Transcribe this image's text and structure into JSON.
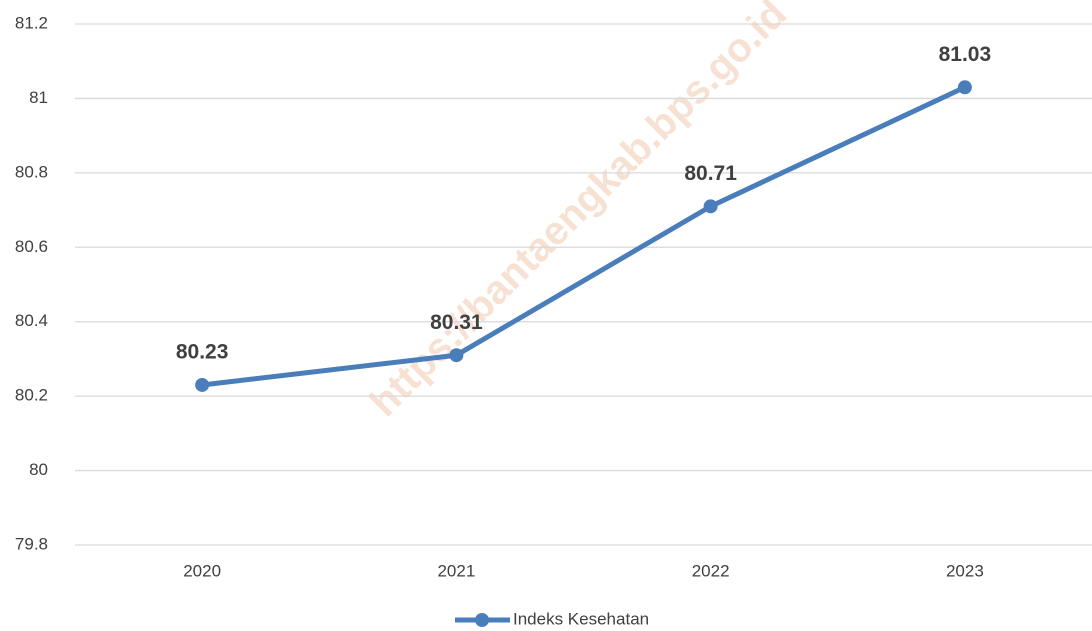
{
  "chart_data": {
    "type": "line",
    "categories": [
      "2020",
      "2021",
      "2022",
      "2023"
    ],
    "series": [
      {
        "name": "Indeks Kesehatan",
        "color": "#4a7ebb",
        "values": [
          80.23,
          80.31,
          80.71,
          81.03
        ]
      }
    ],
    "ylim": [
      79.8,
      81.2
    ],
    "yticks": [
      79.8,
      80,
      80.2,
      80.4,
      80.6,
      80.8,
      81,
      81.2
    ],
    "grid": true,
    "legend": "bottom",
    "watermark": "https://bantaengkab.bps.go.id"
  }
}
